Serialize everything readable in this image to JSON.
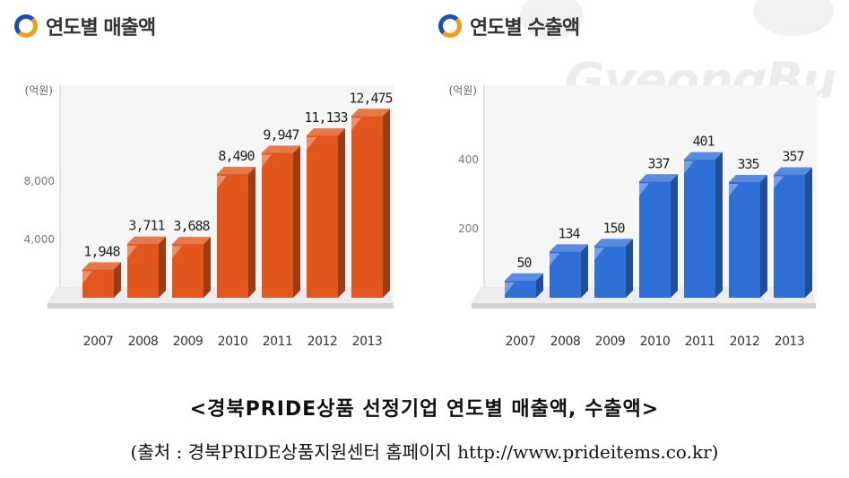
{
  "charts": {
    "sales_title": "연도별 매출액",
    "export_title": "연도별 수출액"
  },
  "watermark": "GyeongBu",
  "caption": "<경북PRIDE상품 선정기업 연도별 매출액, 수출액>",
  "source": "(출처 : 경북PRIDE상품지원센터 홈페이지 http://www.prideitems.co.kr)",
  "colors": {
    "sales": "#e0561c",
    "exports": "#2f6fd6",
    "icon_blue": "#1f4fa8",
    "icon_orange": "#f29a1a"
  },
  "chart_data": [
    {
      "type": "bar",
      "title": "연도별 매출액",
      "ylabel": "(억원)",
      "categories": [
        "2007",
        "2008",
        "2009",
        "2010",
        "2011",
        "2012",
        "2013"
      ],
      "values": [
        1948,
        3711,
        3688,
        8490,
        9947,
        11133,
        12475
      ],
      "data_labels": [
        "1,948",
        "3,711",
        "3,688",
        "8,490",
        "9,947",
        "11,133",
        "12,475"
      ],
      "yticks": [
        4000,
        8000
      ],
      "ytick_labels": [
        "4,000",
        "8,000"
      ],
      "ylim": [
        0,
        12000
      ],
      "color": "#e0561c",
      "grid": false,
      "legend": "none"
    },
    {
      "type": "bar",
      "title": "연도별 수출액",
      "ylabel": "(억원)",
      "categories": [
        "2007",
        "2008",
        "2009",
        "2010",
        "2011",
        "2012",
        "2013"
      ],
      "values": [
        50,
        134,
        150,
        337,
        401,
        335,
        357
      ],
      "data_labels": [
        "50",
        "134",
        "150",
        "337",
        "401",
        "335",
        "357"
      ],
      "yticks": [
        200,
        400
      ],
      "ytick_labels": [
        "200",
        "400"
      ],
      "ylim": [
        0,
        400
      ],
      "color": "#2f6fd6",
      "grid": false,
      "legend": "none"
    }
  ]
}
